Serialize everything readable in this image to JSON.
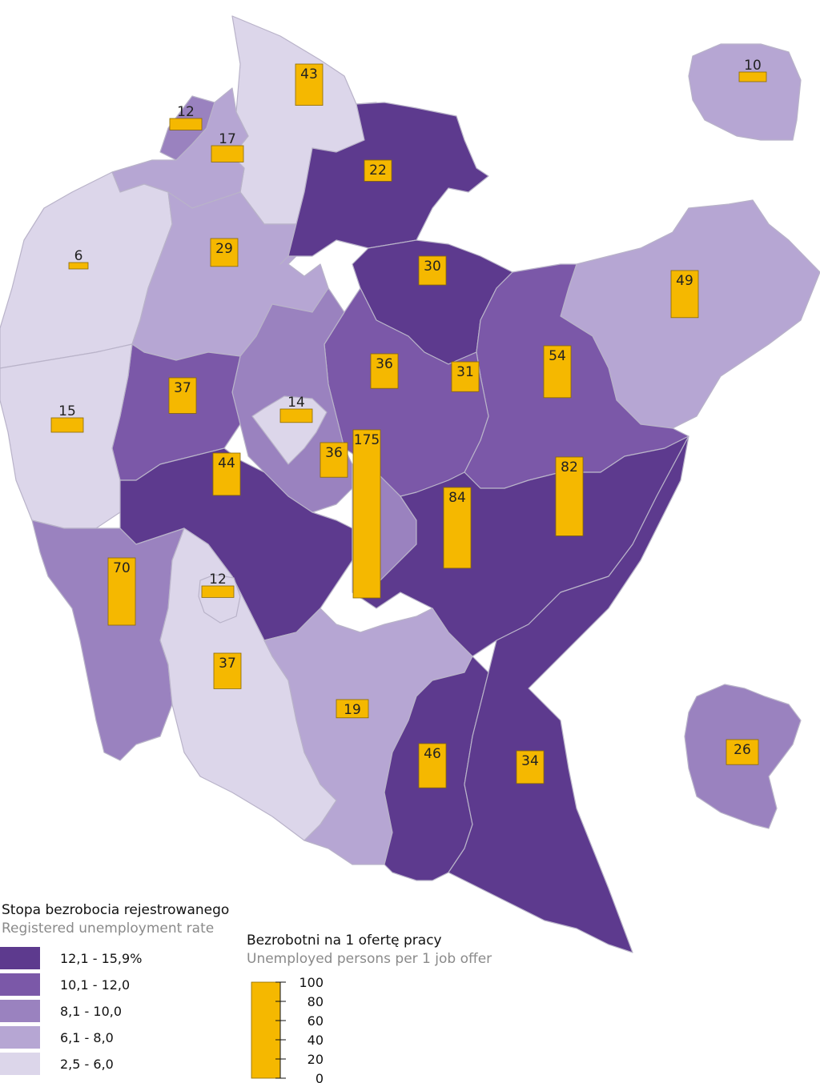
{
  "colors": {
    "class_1": "#5d3a8e",
    "class_2": "#7b58a8",
    "class_3": "#9a82bf",
    "class_4": "#b6a6d3",
    "class_5": "#dcd6ea",
    "bar": "#f5b800"
  },
  "legend_rate": {
    "title": "Stopa bezrobocia rejestrowanego",
    "subtitle": "Registered unemployment rate",
    "classes": [
      {
        "color_key": "class_1",
        "label": "12,1 -  15,9%"
      },
      {
        "color_key": "class_2",
        "label": "10,1 -  12,0"
      },
      {
        "color_key": "class_3",
        "label": " 8,1 -  10,0"
      },
      {
        "color_key": "class_4",
        "label": " 6,1 -   8,0"
      },
      {
        "color_key": "class_5",
        "label": " 2,5 -   6,0"
      }
    ]
  },
  "legend_bars": {
    "title": "Bezrobotni na 1 ofertę pracy",
    "subtitle": "Unemployed persons per 1 job offer",
    "scale": [
      "100",
      "80",
      "60",
      "40",
      "20",
      "0"
    ]
  },
  "bars": [
    {
      "id": "nw-top",
      "value": 43,
      "label": "43"
    },
    {
      "id": "far-ne",
      "value": 10,
      "label": "10"
    },
    {
      "id": "nw-small",
      "value": 12,
      "label": "12"
    },
    {
      "id": "nw-mid",
      "value": 17,
      "label": "17"
    },
    {
      "id": "north-c",
      "value": 22,
      "label": "22"
    },
    {
      "id": "west-1",
      "value": 6,
      "label": "6"
    },
    {
      "id": "w-mid",
      "value": 29,
      "label": "29"
    },
    {
      "id": "c-north",
      "value": 30,
      "label": "30"
    },
    {
      "id": "east",
      "value": 49,
      "label": "49"
    },
    {
      "id": "c-1",
      "value": 36,
      "label": "36"
    },
    {
      "id": "c-2",
      "value": 31,
      "label": "31"
    },
    {
      "id": "c-e",
      "value": 54,
      "label": "54"
    },
    {
      "id": "w-c",
      "value": 37,
      "label": "37"
    },
    {
      "id": "west-2",
      "value": 15,
      "label": "15"
    },
    {
      "id": "city-1",
      "value": 14,
      "label": "14"
    },
    {
      "id": "c-3",
      "value": 36,
      "label": "36"
    },
    {
      "id": "capital",
      "value": 175,
      "label": "175"
    },
    {
      "id": "sw-c",
      "value": 44,
      "label": "44"
    },
    {
      "id": "s-c",
      "value": 84,
      "label": "84"
    },
    {
      "id": "se-c",
      "value": 82,
      "label": "82"
    },
    {
      "id": "sw-1",
      "value": 70,
      "label": "70"
    },
    {
      "id": "city-2",
      "value": 12,
      "label": "12"
    },
    {
      "id": "s-w",
      "value": 37,
      "label": "37"
    },
    {
      "id": "s-mid",
      "value": 19,
      "label": "19"
    },
    {
      "id": "far-se",
      "value": 26,
      "label": "26"
    },
    {
      "id": "s-1",
      "value": 46,
      "label": "46"
    },
    {
      "id": "s-2",
      "value": 34,
      "label": "34"
    }
  ]
}
